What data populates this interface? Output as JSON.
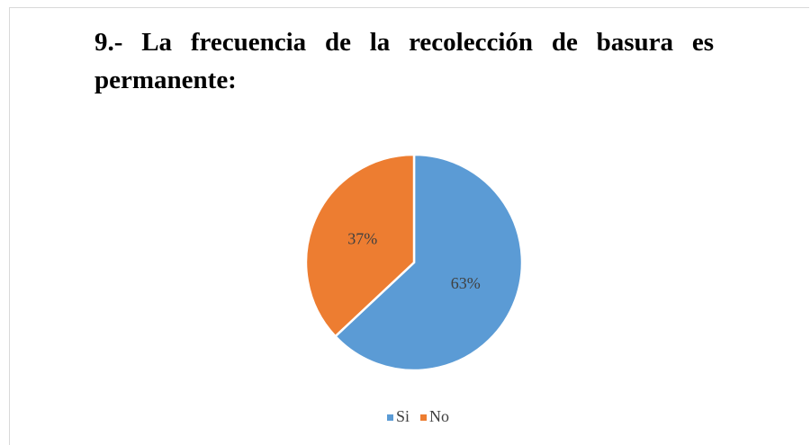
{
  "chart_data": {
    "type": "pie",
    "title": "9.- La frecuencia de la recolección de basura es permanente:",
    "categories": [
      "Si",
      "No"
    ],
    "values": [
      63,
      37
    ],
    "value_labels": [
      "63%",
      "37%"
    ],
    "colors": [
      "#5b9bd5",
      "#ed7d31"
    ],
    "legend": "bottom"
  }
}
